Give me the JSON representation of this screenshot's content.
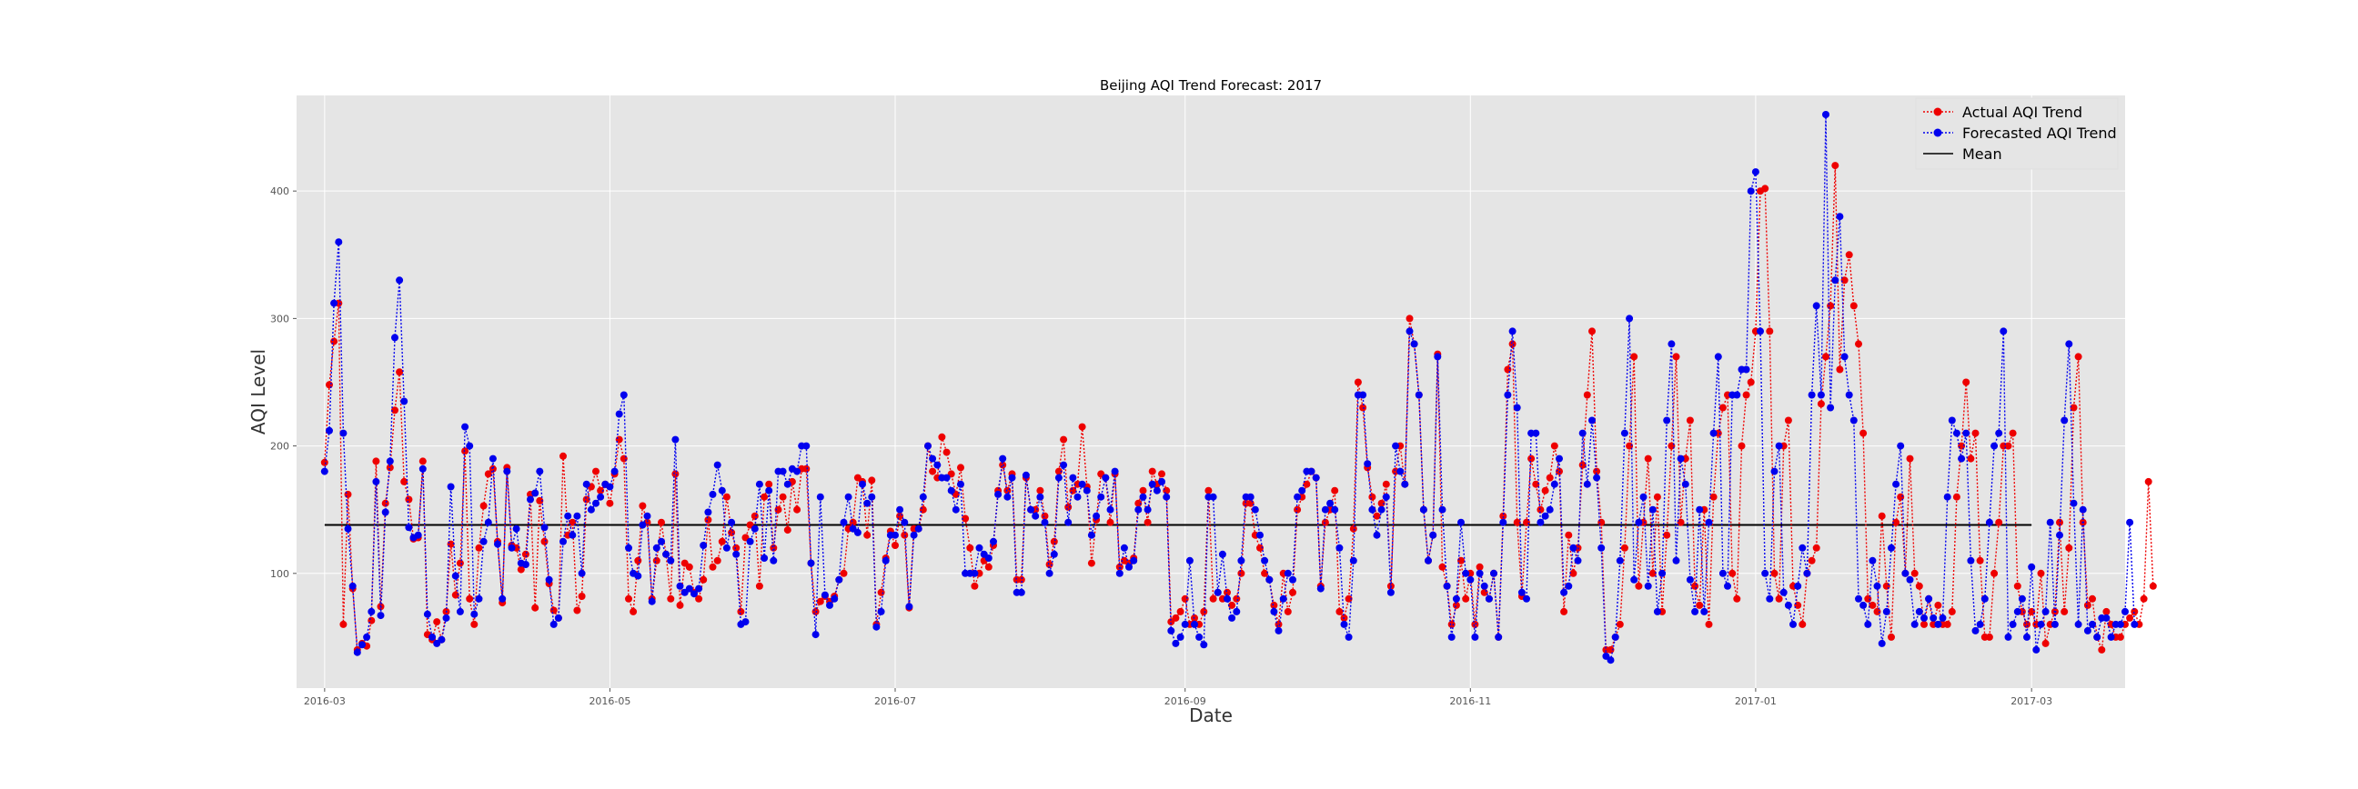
{
  "chart_data": {
    "type": "line",
    "title": "Beijing AQI Trend Forecast: 2017",
    "xlabel": "Date",
    "ylabel": "AQI Level",
    "x_ticks": [
      "2016-03",
      "2016-05",
      "2016-07",
      "2016-09",
      "2016-11",
      "2017-01",
      "2017-03"
    ],
    "y_ticks": [
      100,
      200,
      300,
      400
    ],
    "xlim": [
      "2016-02-24",
      "2017-03-21"
    ],
    "ylim": [
      10,
      475
    ],
    "grid": true,
    "legend_position": "top-right",
    "colors": {
      "actual": "#ee0000",
      "forecast": "#0000ee",
      "mean": "#000000",
      "plot_bg": "#e5e5e5",
      "grid": "#ffffff"
    },
    "series": [
      {
        "name": "Actual AQI Trend",
        "style": "dotted-with-markers",
        "x_start": "2016-03-01",
        "x_step_days": 1,
        "values": [
          187,
          248,
          282,
          312,
          60,
          162,
          88,
          40,
          45,
          43,
          63,
          188,
          74,
          155,
          183,
          228,
          258,
          172,
          158,
          127,
          128,
          188,
          52,
          48,
          62,
          48,
          70,
          123,
          83,
          108,
          196,
          80,
          60,
          120,
          153,
          178,
          182,
          125,
          77,
          183,
          122,
          120,
          103,
          115,
          162,
          73,
          157,
          125,
          92,
          71,
          65,
          192,
          130,
          140,
          71,
          82,
          158,
          168,
          180,
          165,
          170,
          155,
          178,
          205,
          190,
          80,
          70,
          110,
          153,
          140,
          80,
          110,
          140,
          115,
          80,
          178,
          75,
          108,
          105,
          85,
          80,
          95,
          142,
          105,
          110,
          125,
          160,
          132,
          120,
          70,
          128,
          138,
          145,
          90,
          160,
          170,
          120,
          150,
          160,
          134,
          172,
          150,
          182,
          182,
          108,
          70,
          78,
          82,
          78,
          82,
          95,
          100,
          135,
          140,
          175,
          172,
          130,
          173,
          60,
          85,
          112,
          133,
          122,
          145,
          130,
          73,
          135,
          135,
          150,
          200,
          180,
          175,
          207,
          195,
          178,
          162,
          183,
          143,
          120,
          90,
          100,
          110,
          105,
          122,
          165,
          185,
          165,
          178,
          95,
          95,
          175,
          150,
          150,
          165,
          145,
          107,
          125,
          180,
          205,
          152,
          165,
          170,
          215,
          168,
          108,
          142,
          178,
          175,
          140,
          178,
          105,
          110,
          108,
          112,
          155,
          165,
          140,
          180,
          170,
          178,
          165,
          62,
          65,
          70,
          80,
          60,
          65,
          60,
          70,
          165,
          80,
          85,
          80,
          85,
          75,
          80,
          100,
          155,
          155,
          130,
          120,
          100,
          95,
          75,
          60,
          100,
          70,
          85,
          150,
          160,
          170,
          180,
          175,
          90,
          140,
          150,
          165,
          70,
          65,
          80,
          135,
          250,
          230,
          183,
          160,
          145,
          155,
          170,
          90,
          180,
          200,
          170,
          300,
          280,
          240,
          150,
          110,
          130,
          272,
          105,
          90,
          60,
          75,
          110,
          80,
          100,
          60,
          105,
          85,
          80,
          100,
          50,
          145,
          260,
          280,
          140,
          82,
          140,
          190,
          170,
          150,
          165,
          175,
          200,
          180,
          70,
          130,
          100,
          120,
          185,
          240,
          290,
          180,
          140,
          40,
          40,
          50,
          60,
          120,
          200,
          270,
          90,
          140,
          190,
          100,
          160,
          70,
          130,
          200,
          270,
          140,
          190,
          220,
          90,
          75,
          150,
          60,
          160,
          210,
          230,
          240,
          100,
          80,
          200,
          240,
          250,
          290,
          400,
          402,
          290,
          100,
          80,
          200,
          220,
          90,
          75,
          60,
          100,
          110,
          120,
          233,
          270,
          310,
          420,
          260,
          330,
          350,
          310,
          280,
          210,
          80,
          75,
          70,
          145,
          90,
          50,
          140,
          160,
          100,
          190,
          100,
          90,
          60,
          80,
          60,
          75,
          60,
          60,
          70,
          160,
          200,
          250,
          190,
          210,
          110,
          50,
          50,
          100,
          140,
          200,
          200,
          210,
          90,
          70,
          60,
          70,
          60,
          100,
          45,
          60,
          70,
          140,
          70,
          120,
          230,
          270,
          140,
          75,
          80,
          50,
          40,
          70,
          60,
          50,
          50,
          60,
          65,
          70,
          60,
          80,
          172,
          90
        ]
      },
      {
        "name": "Forecasted AQI Trend",
        "style": "dotted-with-markers",
        "x_start": "2016-03-01",
        "x_step_days": 1,
        "values": [
          180,
          212,
          312,
          360,
          210,
          135,
          90,
          38,
          44,
          50,
          70,
          172,
          67,
          148,
          188,
          285,
          330,
          235,
          136,
          128,
          130,
          182,
          68,
          50,
          45,
          48,
          65,
          168,
          98,
          70,
          215,
          200,
          68,
          80,
          125,
          140,
          190,
          123,
          80,
          180,
          120,
          135,
          108,
          107,
          158,
          163,
          180,
          136,
          95,
          60,
          65,
          125,
          145,
          130,
          145,
          100,
          170,
          150,
          155,
          160,
          170,
          168,
          180,
          225,
          240,
          120,
          100,
          98,
          138,
          145,
          78,
          120,
          125,
          115,
          110,
          205,
          90,
          85,
          88,
          84,
          88,
          122,
          148,
          162,
          185,
          165,
          120,
          140,
          115,
          60,
          62,
          125,
          135,
          170,
          112,
          165,
          110,
          180,
          180,
          170,
          182,
          180,
          200,
          200,
          108,
          52,
          160,
          83,
          75,
          80,
          95,
          140,
          160,
          135,
          132,
          170,
          155,
          160,
          58,
          70,
          110,
          130,
          130,
          150,
          140,
          74,
          130,
          135,
          160,
          200,
          190,
          185,
          175,
          175,
          165,
          150,
          170,
          100,
          100,
          100,
          120,
          115,
          112,
          125,
          162,
          190,
          160,
          175,
          85,
          85,
          177,
          150,
          145,
          160,
          140,
          100,
          115,
          175,
          185,
          140,
          175,
          160,
          170,
          165,
          130,
          145,
          160,
          175,
          150,
          180,
          100,
          120,
          105,
          110,
          150,
          160,
          150,
          170,
          165,
          172,
          160,
          55,
          45,
          50,
          60,
          110,
          60,
          50,
          44,
          160,
          160,
          85,
          115,
          80,
          65,
          70,
          110,
          160,
          160,
          150,
          130,
          110,
          95,
          70,
          55,
          80,
          100,
          95,
          160,
          165,
          180,
          180,
          175,
          88,
          150,
          155,
          150,
          120,
          60,
          50,
          110,
          240,
          240,
          186,
          150,
          130,
          150,
          160,
          85,
          200,
          180,
          170,
          290,
          280,
          240,
          150,
          110,
          130,
          270,
          150,
          90,
          50,
          80,
          140,
          100,
          95,
          50,
          100,
          90,
          80,
          100,
          50,
          140,
          240,
          290,
          230,
          85,
          80,
          210,
          210,
          140,
          145,
          150,
          170,
          190,
          85,
          90,
          120,
          110,
          210,
          170,
          220,
          175,
          120,
          35,
          32,
          50,
          110,
          210,
          300,
          95,
          140,
          160,
          90,
          150,
          70,
          100,
          220,
          280,
          110,
          190,
          170,
          95,
          70,
          150,
          70,
          140,
          210,
          270,
          100,
          90,
          240,
          240,
          260,
          260,
          400,
          415,
          290,
          100,
          80,
          180,
          200,
          85,
          75,
          60,
          90,
          120,
          100,
          240,
          310,
          240,
          460,
          230,
          330,
          380,
          270,
          240,
          220,
          80,
          75,
          60,
          110,
          90,
          45,
          70,
          120,
          170,
          200,
          100,
          95,
          60,
          70,
          65,
          80,
          65,
          60,
          65,
          160,
          220,
          210,
          190,
          210,
          110,
          55,
          60,
          80,
          140,
          200,
          210,
          290,
          50,
          60,
          70,
          80,
          50,
          105,
          40,
          60,
          70,
          140,
          60,
          130,
          220,
          280,
          155,
          60,
          150,
          55,
          60,
          50,
          65,
          65,
          50,
          60,
          60,
          70,
          140,
          60
        ]
      },
      {
        "name": "Mean",
        "style": "solid",
        "value": 138
      }
    ]
  }
}
